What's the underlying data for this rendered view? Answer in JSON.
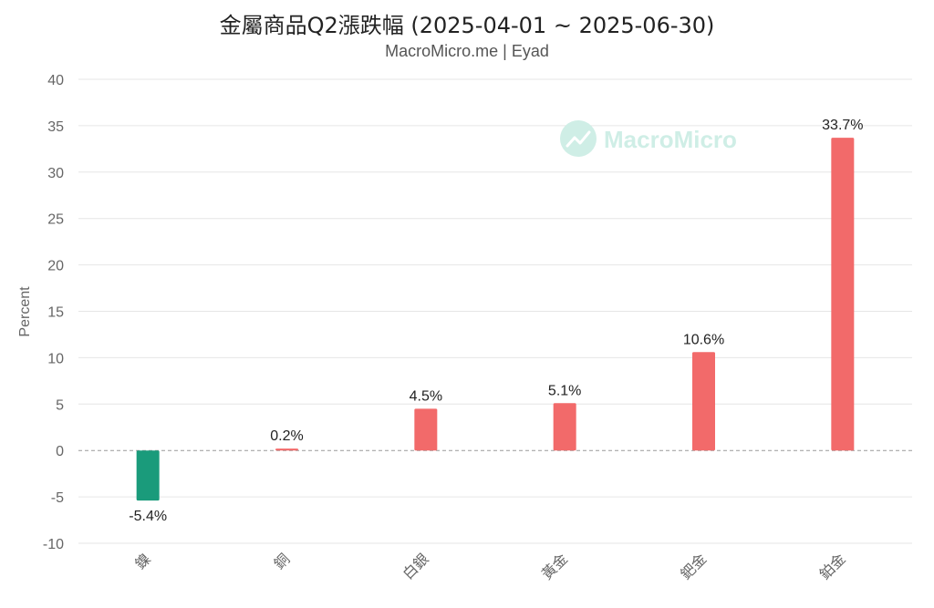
{
  "chart_data": {
    "type": "bar",
    "title": "金屬商品Q2漲跌幅 (2025-04-01 ~ 2025-06-30)",
    "subtitle": "MacroMicro.me | Eyad",
    "watermark": "MacroMicro",
    "xlabel": "",
    "ylabel": "Percent",
    "ylim": [
      -10,
      40
    ],
    "yticks": [
      40,
      35,
      30,
      25,
      20,
      15,
      10,
      5,
      0,
      -5,
      -10
    ],
    "categories": [
      "鎳",
      "銅",
      "白銀",
      "黃金",
      "鈀金",
      "鉑金"
    ],
    "values": [
      -5.4,
      0.2,
      4.5,
      5.1,
      10.6,
      33.7
    ],
    "data_labels": [
      "-5.4%",
      "0.2%",
      "4.5%",
      "5.1%",
      "10.6%",
      "33.7%"
    ],
    "grid": true,
    "legend": "none"
  },
  "colors": {
    "positive": "#f26a6a",
    "negative": "#1a9b7b",
    "grid": "#e6e6e6",
    "zero_line": "#999999",
    "watermark": "#cfeee6"
  }
}
